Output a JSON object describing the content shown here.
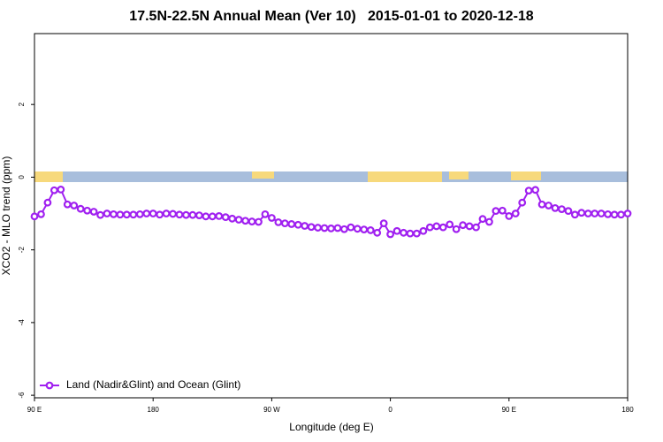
{
  "chart_data": {
    "type": "line",
    "title": "17.5N-22.5N Annual Mean (Ver 10)   2015-01-01 to 2020-12-18",
    "x_label": "Longitude (deg E)",
    "y_label": "XCO2 - MLO trend (ppm)",
    "x": [
      90,
      95,
      100,
      105,
      110,
      115,
      120,
      125,
      130,
      135,
      140,
      145,
      150,
      155,
      160,
      165,
      170,
      175,
      180,
      185,
      190,
      195,
      200,
      205,
      210,
      215,
      220,
      225,
      230,
      235,
      240,
      245,
      250,
      255,
      260,
      265,
      270,
      275,
      280,
      285,
      290,
      295,
      300,
      305,
      310,
      315,
      320,
      325,
      330,
      335,
      340,
      345,
      350,
      355,
      360,
      365,
      370,
      375,
      380,
      385,
      390,
      395,
      400,
      405,
      410,
      415,
      420,
      425,
      430,
      435,
      440,
      445,
      450,
      455,
      460,
      465,
      470,
      475,
      480,
      485,
      490,
      495,
      500,
      505,
      510,
      515,
      520,
      525,
      530,
      535,
      540
    ],
    "series": [
      {
        "name": "Land (Nadir&Glint) and Ocean (Glint)",
        "color": "#a020f0",
        "values": [
          -1.08,
          -1.02,
          -0.7,
          -0.36,
          -0.34,
          -0.75,
          -0.78,
          -0.87,
          -0.92,
          -0.95,
          -1.04,
          -1.0,
          -1.02,
          -1.03,
          -1.03,
          -1.03,
          -1.02,
          -1.0,
          -1.0,
          -1.03,
          -1.0,
          -1.01,
          -1.03,
          -1.04,
          -1.04,
          -1.05,
          -1.08,
          -1.08,
          -1.07,
          -1.1,
          -1.14,
          -1.17,
          -1.2,
          -1.22,
          -1.23,
          -1.02,
          -1.12,
          -1.24,
          -1.27,
          -1.29,
          -1.31,
          -1.34,
          -1.37,
          -1.39,
          -1.4,
          -1.41,
          -1.4,
          -1.43,
          -1.38,
          -1.42,
          -1.44,
          -1.46,
          -1.53,
          -1.27,
          -1.57,
          -1.48,
          -1.53,
          -1.55,
          -1.55,
          -1.48,
          -1.38,
          -1.35,
          -1.38,
          -1.3,
          -1.43,
          -1.32,
          -1.35,
          -1.38,
          -1.15,
          -1.23,
          -0.93,
          -0.92,
          -1.07,
          -1.0,
          -0.7,
          -0.37,
          -0.35,
          -0.75,
          -0.78,
          -0.85,
          -0.88,
          -0.93,
          -1.03,
          -0.98,
          -1.0,
          -1.0,
          -1.0,
          -1.02,
          -1.03,
          -1.03,
          -1.0
        ]
      }
    ],
    "xlim": [
      90,
      540
    ],
    "xticks": [
      {
        "value": 90,
        "label": "90 E"
      },
      180,
      {
        "value": 270,
        "label": "90 W"
      },
      {
        "value": 360,
        "label": "0"
      },
      {
        "value": 450,
        "label": "90 E"
      },
      {
        "value": 540,
        "label": "180"
      }
    ],
    "ylim": [
      -6.07,
      3.95
    ],
    "yticks": [
      2,
      0,
      -2,
      -4,
      -6
    ],
    "legend": "bottom-left"
  }
}
